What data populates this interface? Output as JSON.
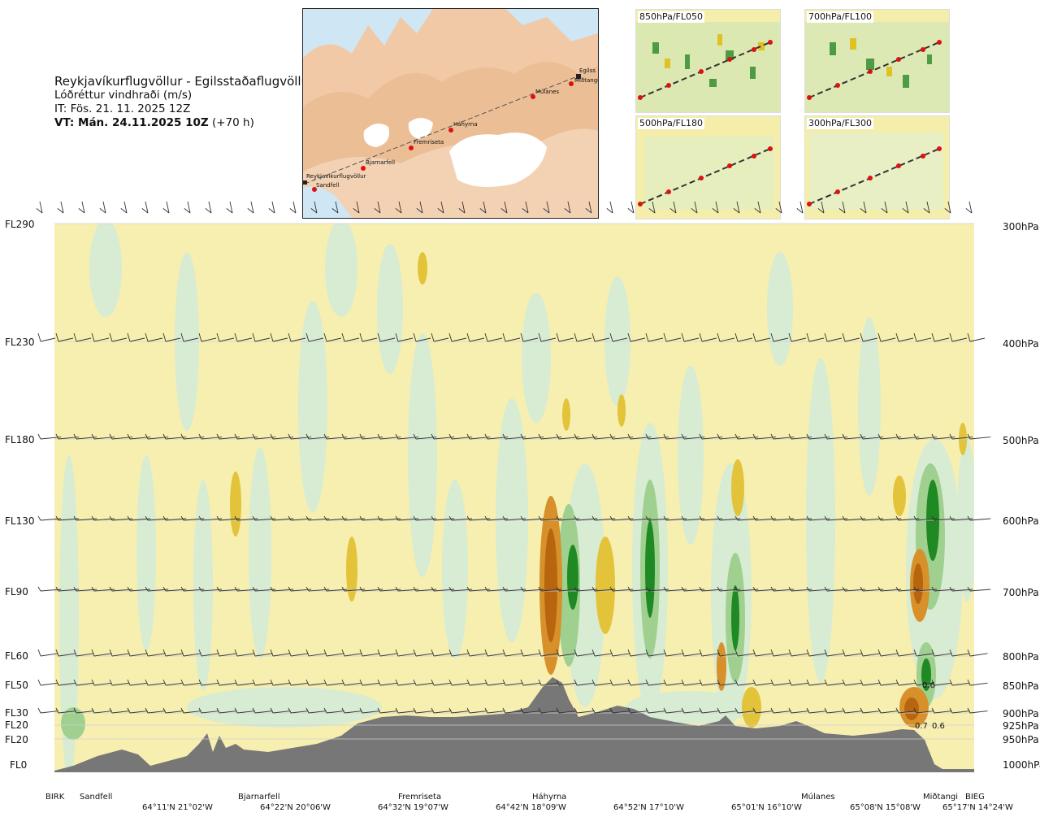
{
  "header": {
    "route": "Reykjavíkurflugvöllur - Egilsstaðaflugvöllur",
    "variable": "Lóðréttur vindhraði (m/s)",
    "issue_time": "IT: Fös. 21. 11. 2025 12Z",
    "valid_time": "VT: Mán. 24.11.2025 10Z",
    "lead_time": " (+70 h)"
  },
  "map": {
    "waypoints": [
      "Reykjavíkurflugvöllur",
      "Sandfell",
      "Bjarnarfell",
      "Fremriseta",
      "Háhyrna",
      "Múlanes",
      "Miðtangi",
      "Egilss"
    ]
  },
  "thumbnails": [
    {
      "label": "850hPa/FL050"
    },
    {
      "label": "700hPa/FL100"
    },
    {
      "label": "500hPa/FL180"
    },
    {
      "label": "300hPa/FL300"
    }
  ],
  "levels_left": [
    "FL290",
    "FL230",
    "FL180",
    "FL130",
    "FL90",
    "FL60",
    "FL50",
    "FL30",
    "FL20",
    "FL20",
    "FL0"
  ],
  "levels_right": [
    "300hPa",
    "400hPa",
    "500hPa",
    "600hPa",
    "700hPa",
    "800hPa",
    "850hPa",
    "900hPa",
    "925hPa",
    "950hPa",
    "1000hPa"
  ],
  "bottom_names": [
    "BIRK",
    "Sandfell",
    "Bjarnarfell",
    "Fremriseta",
    "Háhyrna",
    "Múlanes",
    "Miðtangi",
    "BIEG"
  ],
  "bottom_coords": [
    "64°11'N 21°02'W",
    "64°22'N 20°06'W",
    "64°32'N 19°07'W",
    "64°42'N 18°09'W",
    "64°52'N 17°10'W",
    "65°01'N 16°10'W",
    "65°08'N 15°08'W",
    "65°17'N 14°24'W"
  ],
  "value_labels": [
    "0.6",
    "0.7",
    "0.6"
  ],
  "colors": {
    "yellow_bg": "#f7efb0",
    "green_light": "#d7ecd3",
    "green_mid": "#9fd08f",
    "green_dark": "#1f8a23",
    "orange": "#c56a12",
    "terrain": "#777777",
    "map_land": "#f1c9a6",
    "map_ice": "#ffffff",
    "map_sea": "#cfe6f5"
  }
}
